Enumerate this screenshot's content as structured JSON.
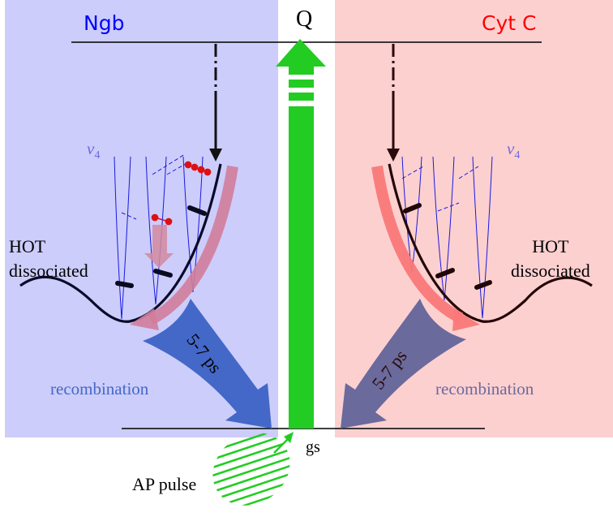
{
  "left_panel": {
    "title": "Ngb",
    "title_color": "#0000ff",
    "bg_color": "#cccdfa",
    "state_label_line1": "HOT",
    "state_label_line2": "dissociated",
    "recombination_label": "recombination",
    "recombination_color": "#4468c8",
    "time_label": "5-7 ps",
    "mode_symbol": "ν",
    "mode_index": "4"
  },
  "right_panel": {
    "title": "Cyt C",
    "title_color": "#ff0000",
    "bg_color": "#fdd0d0",
    "state_label_line1": "HOT",
    "state_label_line2": "dissociated",
    "recombination_label": "recombination",
    "recombination_color": "#6a6a9c",
    "time_label": "5-7 ps",
    "mode_symbol": "ν",
    "mode_index": "4"
  },
  "center": {
    "excited_state_label": "Q",
    "ground_state_label": "gs",
    "pulse_label": "AP pulse",
    "arrow_color": "#22cc22"
  }
}
